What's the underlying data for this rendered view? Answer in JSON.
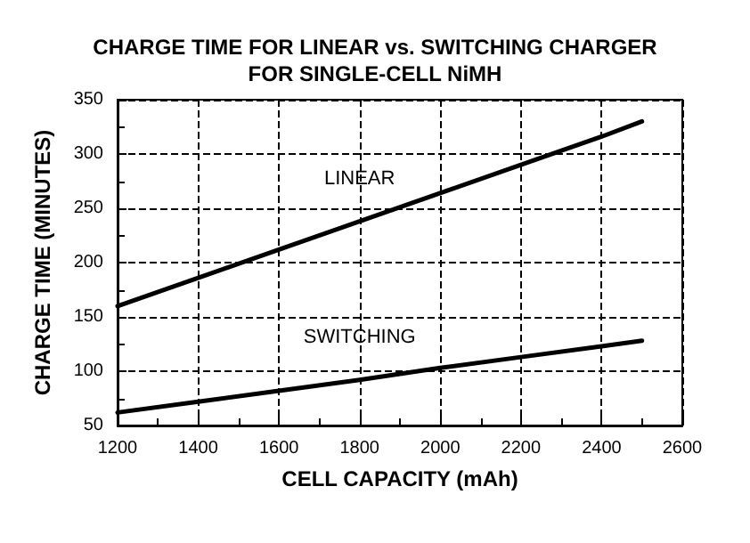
{
  "chart_data": {
    "type": "line",
    "title": "CHARGE TIME FOR LINEAR vs. SWITCHING CHARGER\nFOR SINGLE-CELL NiMH",
    "xlabel": "CELL CAPACITY (mAh)",
    "ylabel": "CHARGE TIME (MINUTES)",
    "x": [
      1200,
      1400,
      1600,
      1800,
      2000,
      2200,
      2400,
      2500
    ],
    "series": [
      {
        "color": "#000000",
        "values": [
          160,
          186,
          212,
          238,
          264,
          290,
          316,
          330
        ]
      },
      {
        "color": "#000000",
        "values": [
          62,
          72,
          82,
          92,
          103,
          113,
          123,
          128
        ]
      }
    ],
    "annotations": [
      "LINEAR",
      "SWITCHING"
    ],
    "xlim": [
      1200,
      2600
    ],
    "xticks": [
      1200,
      1400,
      1600,
      1800,
      2000,
      2200,
      2400,
      2600
    ],
    "ylim": [
      50,
      350
    ],
    "yticks": [
      50,
      100,
      150,
      200,
      250,
      300,
      350
    ],
    "grid": true,
    "marker": "none",
    "line_style": "solid"
  }
}
